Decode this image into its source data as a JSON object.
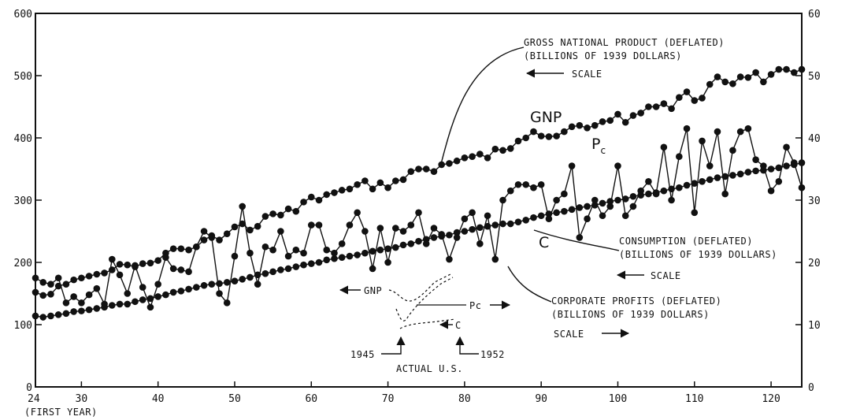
{
  "chart_data": {
    "type": "line",
    "x_ticks": [
      "24",
      "30",
      "40",
      "50",
      "60",
      "70",
      "80",
      "90",
      "100",
      "110",
      "120"
    ],
    "x_first_label": "(FIRST YEAR)",
    "xlim": [
      24,
      124
    ],
    "ylim_left": [
      0,
      600
    ],
    "ylim_right": [
      0,
      60
    ],
    "y_left_ticks": [
      "0",
      "100",
      "200",
      "300",
      "400",
      "500",
      "600"
    ],
    "y_right_ticks": [
      "0",
      "10",
      "20",
      "30",
      "40",
      "50",
      "60"
    ],
    "grid": false,
    "series": [
      {
        "name": "GNP",
        "axis": "left",
        "x": [
          24,
          25,
          26,
          27,
          28,
          29,
          30,
          31,
          32,
          33,
          34,
          35,
          36,
          37,
          38,
          39,
          40,
          41,
          42,
          43,
          44,
          45,
          46,
          47,
          48,
          49,
          50,
          51,
          52,
          53,
          54,
          55,
          56,
          57,
          58,
          59,
          60,
          61,
          62,
          63,
          64,
          65,
          66,
          67,
          68,
          69,
          70,
          71,
          72,
          73,
          74,
          75,
          76,
          77,
          78,
          79,
          80,
          81,
          82,
          83,
          84,
          85,
          86,
          87,
          88,
          89,
          90,
          91,
          92,
          93,
          94,
          95,
          96,
          97,
          98,
          99,
          100,
          101,
          102,
          103,
          104,
          105,
          106,
          107,
          108,
          109,
          110,
          111,
          112,
          113,
          114,
          115,
          116,
          117,
          118,
          119,
          120,
          121,
          122,
          123,
          124
        ],
        "values": [
          152,
          147,
          149,
          162,
          165,
          172,
          175,
          178,
          181,
          183,
          188,
          197,
          196,
          193,
          198,
          199,
          203,
          215,
          222,
          222,
          220,
          225,
          236,
          243,
          236,
          246,
          257,
          262,
          252,
          258,
          274,
          278,
          276,
          286,
          282,
          297,
          305,
          300,
          309,
          312,
          316,
          318,
          325,
          331,
          318,
          328,
          320,
          331,
          333,
          346,
          350,
          350,
          346,
          357,
          359,
          363,
          368,
          370,
          374,
          368,
          382,
          380,
          383,
          395,
          400,
          410,
          403,
          402,
          403,
          410,
          418,
          420,
          416,
          420,
          426,
          428,
          438,
          425,
          436,
          440,
          450,
          450,
          455,
          447,
          465,
          474,
          460,
          464,
          486,
          498,
          490,
          487,
          498,
          497,
          505,
          490,
          502,
          510,
          510,
          505,
          510
        ]
      },
      {
        "name": "C",
        "axis": "left",
        "x": [
          24,
          25,
          26,
          27,
          28,
          29,
          30,
          31,
          32,
          33,
          34,
          35,
          36,
          37,
          38,
          39,
          40,
          41,
          42,
          43,
          44,
          45,
          46,
          47,
          48,
          49,
          50,
          51,
          52,
          53,
          54,
          55,
          56,
          57,
          58,
          59,
          60,
          61,
          62,
          63,
          64,
          65,
          66,
          67,
          68,
          69,
          70,
          71,
          72,
          73,
          74,
          75,
          76,
          77,
          78,
          79,
          80,
          81,
          82,
          83,
          84,
          85,
          86,
          87,
          88,
          89,
          90,
          91,
          92,
          93,
          94,
          95,
          96,
          97,
          98,
          99,
          100,
          101,
          102,
          103,
          104,
          105,
          106,
          107,
          108,
          109,
          110,
          111,
          112,
          113,
          114,
          115,
          116,
          117,
          118,
          119,
          120,
          121,
          122,
          123,
          124
        ],
        "values": [
          114,
          112,
          114,
          116,
          118,
          121,
          122,
          124,
          126,
          128,
          131,
          133,
          133,
          137,
          140,
          142,
          145,
          148,
          152,
          154,
          157,
          160,
          163,
          165,
          166,
          168,
          170,
          173,
          176,
          180,
          182,
          185,
          188,
          190,
          193,
          196,
          198,
          200,
          204,
          206,
          208,
          210,
          212,
          215,
          218,
          220,
          222,
          224,
          228,
          230,
          234,
          237,
          240,
          242,
          244,
          248,
          250,
          253,
          256,
          258,
          260,
          262,
          262,
          265,
          268,
          272,
          275,
          278,
          280,
          282,
          285,
          288,
          290,
          292,
          295,
          298,
          300,
          302,
          306,
          308,
          310,
          312,
          315,
          318,
          320,
          324,
          327,
          330,
          333,
          336,
          338,
          340,
          342,
          345,
          347,
          348,
          350,
          352,
          355,
          357,
          360
        ]
      },
      {
        "name": "Pc",
        "axis": "right",
        "x": [
          24,
          25,
          26,
          27,
          28,
          29,
          30,
          31,
          32,
          33,
          34,
          35,
          36,
          37,
          38,
          39,
          40,
          41,
          42,
          43,
          44,
          45,
          46,
          47,
          48,
          49,
          50,
          51,
          52,
          53,
          54,
          55,
          56,
          57,
          58,
          59,
          60,
          61,
          62,
          63,
          64,
          65,
          66,
          67,
          68,
          69,
          70,
          71,
          72,
          73,
          74,
          75,
          76,
          77,
          78,
          79,
          80,
          81,
          82,
          83,
          84,
          85,
          86,
          87,
          88,
          89,
          90,
          91,
          92,
          93,
          94,
          95,
          96,
          97,
          98,
          99,
          100,
          101,
          102,
          103,
          104,
          105,
          106,
          107,
          108,
          109,
          110,
          111,
          112,
          113,
          114,
          115,
          116,
          117,
          118,
          119,
          120,
          121,
          122,
          123,
          124
        ],
        "values": [
          17.5,
          16.8,
          16.5,
          17.5,
          13.5,
          14.5,
          13.5,
          14.8,
          15.8,
          13.3,
          20.5,
          18.0,
          15.0,
          19.5,
          16.0,
          12.8,
          16.5,
          20.8,
          19.0,
          18.8,
          18.5,
          22.5,
          25.0,
          24.0,
          15.0,
          13.5,
          21.0,
          29.0,
          21.5,
          16.5,
          22.5,
          22.0,
          25.0,
          21.0,
          22.0,
          21.5,
          26.0,
          26.0,
          22.0,
          21.5,
          23.0,
          26.0,
          28.0,
          25.0,
          19.0,
          25.5,
          20.0,
          25.5,
          25.0,
          26.0,
          28.0,
          23.0,
          25.5,
          24.5,
          20.5,
          24.0,
          27.0,
          28.0,
          23.0,
          27.5,
          20.5,
          30.0,
          31.5,
          32.5,
          32.5,
          32.0,
          32.5,
          27.0,
          30.0,
          31.0,
          35.5,
          24.0,
          27.0,
          30.0,
          27.5,
          29.0,
          35.5,
          27.5,
          29.0,
          31.5,
          33.0,
          31.0,
          38.5,
          30.0,
          37.0,
          41.5,
          28.0,
          39.5,
          35.5,
          41.0,
          31.0,
          38.0,
          41.0,
          41.5,
          36.5,
          35.5,
          31.5,
          33.0,
          38.5,
          36.0,
          32.0
        ]
      }
    ],
    "inset": {
      "x_labels": [
        "1945",
        "1952"
      ],
      "caption": "ACTUAL U.S.",
      "series_labels": [
        "GNP",
        "Pc",
        "C"
      ]
    },
    "annotations": {
      "gnp_title_1": "GROSS NATIONAL PRODUCT (DEFLATED)",
      "gnp_title_2": "(BILLIONS OF 1939 DOLLARS)",
      "gnp_scale": "SCALE",
      "gnp_label": "GNP",
      "pc_label": "P",
      "pc_sub": "c",
      "c_label": "C",
      "cons_title_1": "CONSUMPTION (DEFLATED)",
      "cons_title_2": "(BILLIONS OF 1939 DOLLARS)",
      "cons_scale": "SCALE",
      "prof_title_1": "CORPORATE PROFITS (DEFLATED)",
      "prof_title_2": "(BILLIONS OF 1939 DOLLARS)",
      "prof_scale": "SCALE"
    }
  }
}
